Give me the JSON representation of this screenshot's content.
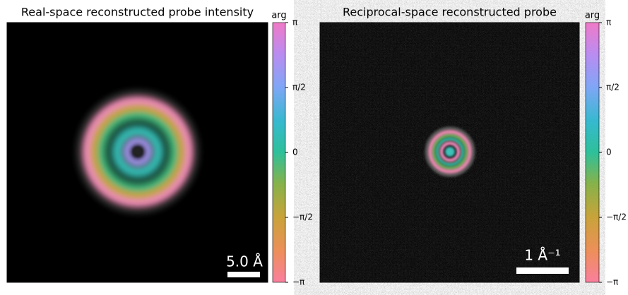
{
  "chart_data": [
    {
      "type": "image",
      "title": "Real-space reconstructed probe intensity",
      "colorbar_label": "arg",
      "clim": [
        -3.14159,
        3.14159
      ],
      "cticks": [
        {
          "value": -3.14159,
          "label": "−π"
        },
        {
          "value": -1.5708,
          "label": "−π/2"
        },
        0,
        {
          "value": 1.5708,
          "label": "π/2"
        },
        {
          "value": 3.14159,
          "label": "π"
        }
      ],
      "scalebar_label": "5.0 Å"
    },
    {
      "type": "image",
      "title": "Reciprocal-space reconstructed probe",
      "colorbar_label": "arg",
      "clim": [
        -3.14159,
        3.14159
      ],
      "cticks": [
        {
          "value": -3.14159,
          "label": "−π"
        },
        {
          "value": -1.5708,
          "label": "−π/2"
        },
        0,
        {
          "value": 1.5708,
          "label": "π/2"
        },
        {
          "value": 3.14159,
          "label": "π"
        }
      ],
      "scalebar_label": "1 Å⁻¹"
    }
  ]
}
